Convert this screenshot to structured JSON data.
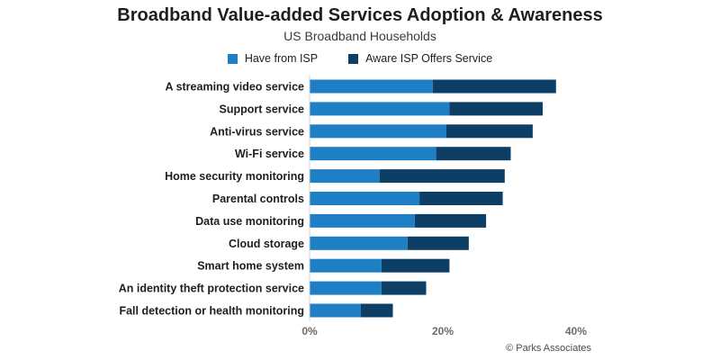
{
  "chart_data": {
    "type": "bar",
    "orientation": "horizontal",
    "stacked": true,
    "title": "Broadband Value-added Services Adoption & Awareness",
    "subtitle": "US Broadband Households",
    "categories": [
      "A streaming video service",
      "Support service",
      "Anti-virus service",
      "Wi-Fi service",
      "Home security monitoring",
      "Parental controls",
      "Data use monitoring",
      "Cloud storage",
      "Smart home system",
      "An identity theft protection service",
      "Fall detection or health monitoring"
    ],
    "series": [
      {
        "name": "Have from ISP",
        "color": "#1f7fc4",
        "values": [
          18.5,
          21,
          20.5,
          19,
          10.5,
          16.5,
          15.8,
          14.7,
          10.8,
          10.8,
          7.7
        ]
      },
      {
        "name": "Aware ISP Offers Service",
        "color": "#0d3f66",
        "values": [
          18.5,
          14,
          13,
          11.2,
          18.8,
          12.5,
          10.7,
          9.2,
          10.2,
          6.7,
          4.8
        ]
      }
    ],
    "xlim": [
      0,
      40
    ],
    "xticks": [
      "0%",
      "20%",
      "40%"
    ],
    "grid": false,
    "legend_position": "top"
  },
  "source": "© Parks Associates"
}
